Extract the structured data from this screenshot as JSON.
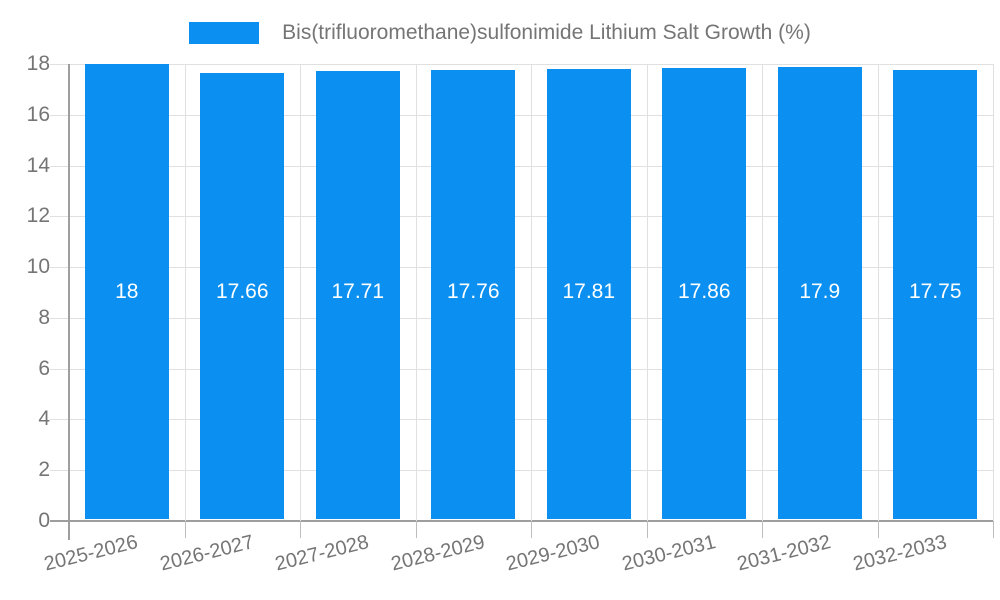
{
  "chart_data": {
    "type": "bar",
    "title": "Bis(trifluoromethane)sulfonimide Lithium Salt Growth (%)",
    "categories": [
      "2025-2026",
      "2026-2027",
      "2027-2028",
      "2028-2029",
      "2029-2030",
      "2030-2031",
      "2031-2032",
      "2032-2033"
    ],
    "values": [
      18,
      17.66,
      17.71,
      17.76,
      17.81,
      17.86,
      17.9,
      17.75
    ],
    "value_labels": [
      "18",
      "17.66",
      "17.71",
      "17.76",
      "17.81",
      "17.86",
      "17.9",
      "17.75"
    ],
    "xlabel": "",
    "ylabel": "",
    "ylim": [
      0,
      18
    ],
    "yticks": [
      0,
      2,
      4,
      6,
      8,
      10,
      12,
      14,
      16,
      18
    ],
    "grid": true,
    "legend_position": "top",
    "x_label_rotation_deg": -14,
    "colors": {
      "bar": "#0b90f1",
      "gridline": "#e0e0e0",
      "axis": "#9e9e9e",
      "tick": "#bdbdbd",
      "label_text": "#757575",
      "value_text": "#ffffff",
      "background": "#ffffff"
    }
  }
}
